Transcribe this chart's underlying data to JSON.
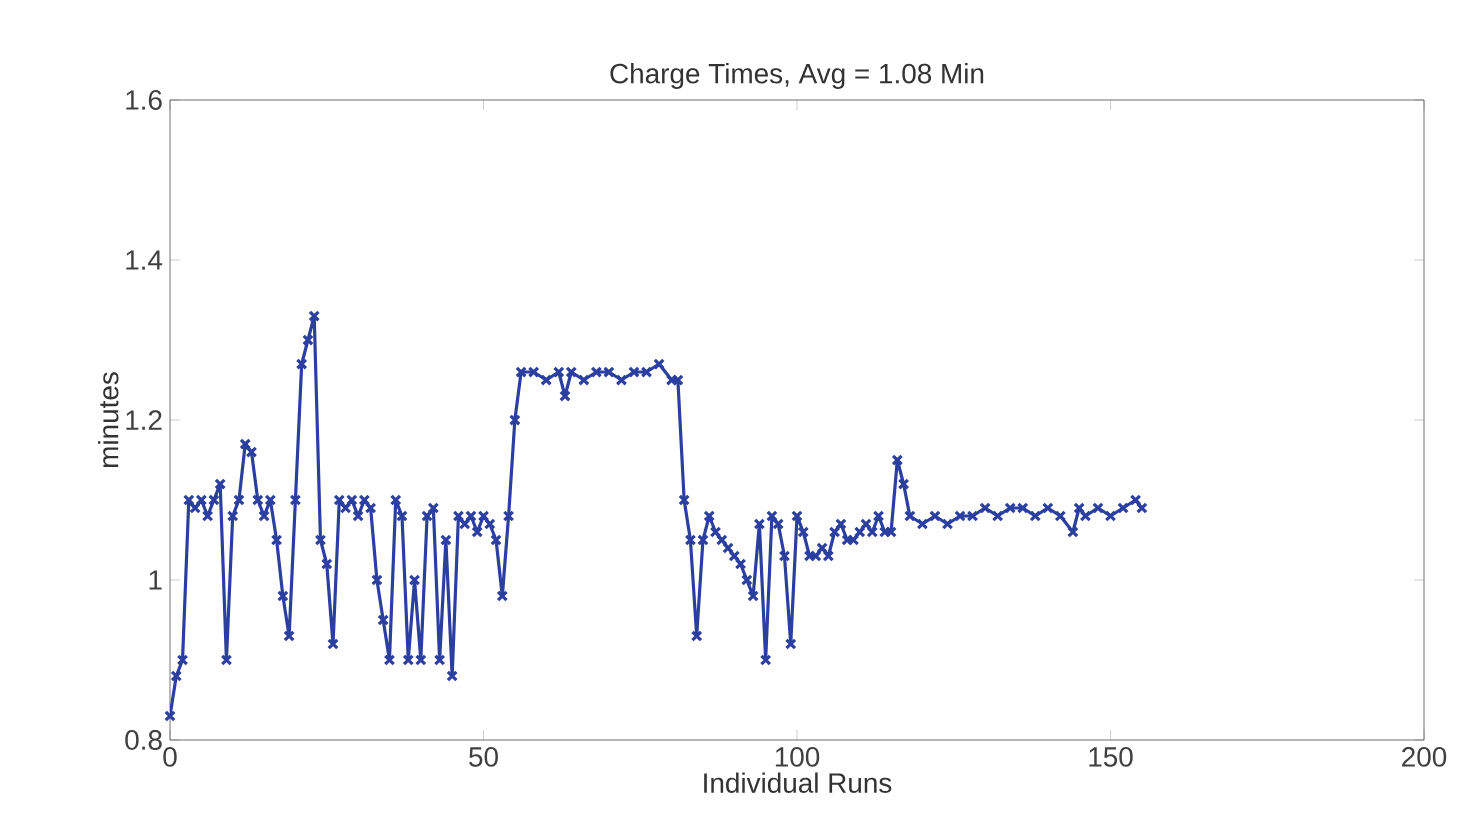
{
  "chart_data": {
    "type": "line",
    "title": "Charge Times, Avg = 1.08 Min",
    "xlabel": "Individual Runs",
    "ylabel": "minutes",
    "x": [
      0,
      1,
      2,
      3,
      4,
      5,
      6,
      7,
      8,
      9,
      10,
      11,
      12,
      13,
      14,
      15,
      16,
      17,
      18,
      19,
      20,
      21,
      22,
      23,
      24,
      25,
      26,
      27,
      28,
      29,
      30,
      31,
      32,
      33,
      34,
      35,
      36,
      37,
      38,
      39,
      40,
      41,
      42,
      43,
      44,
      45,
      46,
      47,
      48,
      49,
      50,
      51,
      52,
      53,
      54,
      55,
      56,
      58,
      60,
      62,
      63,
      64,
      66,
      68,
      70,
      72,
      74,
      76,
      78,
      80,
      81,
      82,
      83,
      84,
      85,
      86,
      87,
      88,
      89,
      90,
      91,
      92,
      93,
      94,
      95,
      96,
      97,
      98,
      99,
      100,
      101,
      102,
      103,
      104,
      105,
      106,
      107,
      108,
      109,
      110,
      111,
      112,
      113,
      114,
      115,
      116,
      117,
      118,
      120,
      122,
      124,
      126,
      128,
      130,
      132,
      134,
      136,
      138,
      140,
      142,
      144,
      145,
      146,
      148,
      150,
      152,
      154,
      155
    ],
    "series": [
      {
        "color": "#2b3fa0",
        "values": [
          0.83,
          0.88,
          0.9,
          1.1,
          1.09,
          1.1,
          1.08,
          1.1,
          1.12,
          0.9,
          1.08,
          1.1,
          1.17,
          1.16,
          1.1,
          1.08,
          1.1,
          1.05,
          0.98,
          0.93,
          1.1,
          1.27,
          1.3,
          1.33,
          1.05,
          1.02,
          0.92,
          1.1,
          1.09,
          1.1,
          1.08,
          1.1,
          1.09,
          1.0,
          0.95,
          0.9,
          1.1,
          1.08,
          0.9,
          1.0,
          0.9,
          1.08,
          1.09,
          0.9,
          1.05,
          0.88,
          1.08,
          1.07,
          1.08,
          1.06,
          1.08,
          1.07,
          1.05,
          0.98,
          1.08,
          1.2,
          1.26,
          1.26,
          1.25,
          1.26,
          1.23,
          1.26,
          1.25,
          1.26,
          1.26,
          1.25,
          1.26,
          1.26,
          1.27,
          1.25,
          1.25,
          1.1,
          1.05,
          0.93,
          1.05,
          1.08,
          1.06,
          1.05,
          1.04,
          1.03,
          1.02,
          1.0,
          0.98,
          1.07,
          0.9,
          1.08,
          1.07,
          1.03,
          0.92,
          1.08,
          1.06,
          1.03,
          1.03,
          1.04,
          1.03,
          1.06,
          1.07,
          1.05,
          1.05,
          1.06,
          1.07,
          1.06,
          1.08,
          1.06,
          1.06,
          1.15,
          1.12,
          1.08,
          1.07,
          1.08,
          1.07,
          1.08,
          1.08,
          1.09,
          1.08,
          1.09,
          1.09,
          1.08,
          1.09,
          1.08,
          1.06,
          1.09,
          1.08,
          1.09,
          1.08,
          1.09,
          1.1,
          1.09
        ]
      }
    ],
    "xlim": [
      0,
      200
    ],
    "ylim": [
      0.8,
      1.6
    ],
    "xticks": [
      0,
      50,
      100,
      150,
      200
    ],
    "yticks": [
      0.8,
      1,
      1.2,
      1.4,
      1.6
    ],
    "marker": "cross",
    "line_style": "solid",
    "grid": false
  }
}
